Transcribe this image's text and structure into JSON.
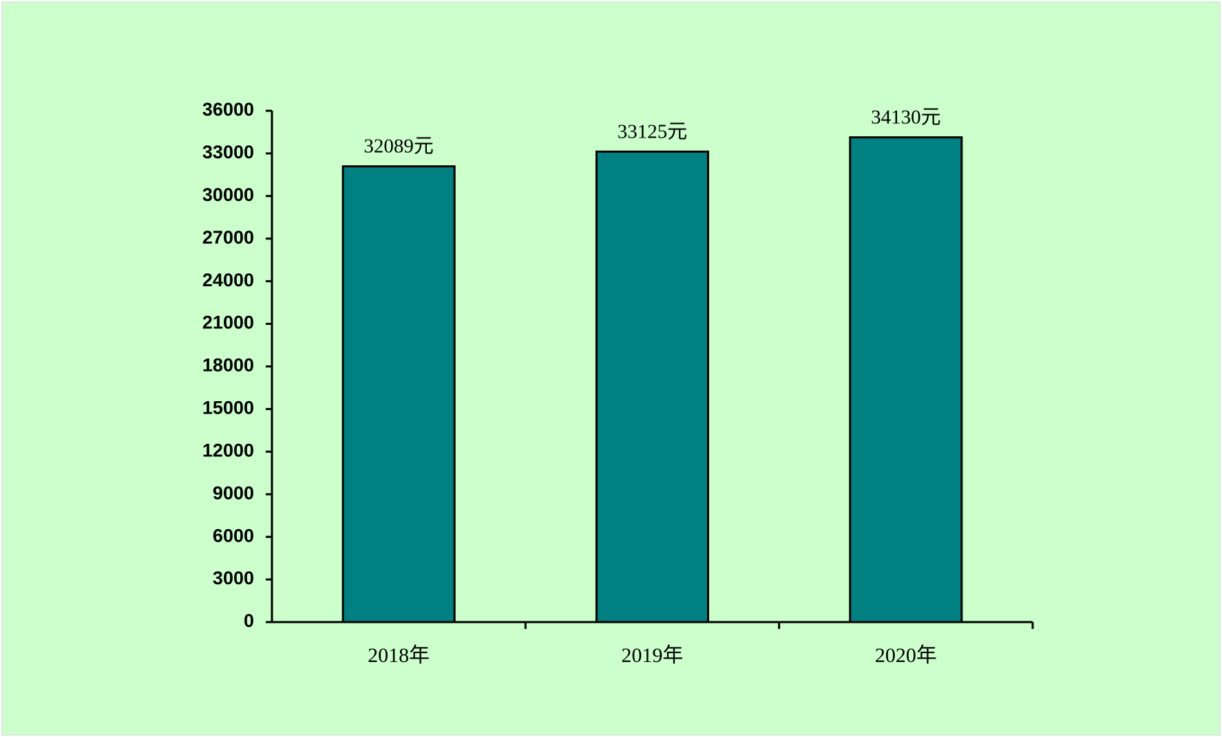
{
  "chart_data": {
    "type": "bar",
    "categories": [
      "2018年",
      "2019年",
      "2020年"
    ],
    "values": [
      32089,
      33125,
      34130
    ],
    "value_labels": [
      "32089元",
      "33125元",
      "34130元"
    ],
    "color": "#008080",
    "ylim": [
      0,
      36000
    ],
    "yticks": [
      0,
      3000,
      6000,
      9000,
      12000,
      15000,
      18000,
      21000,
      24000,
      27000,
      30000,
      33000,
      36000
    ],
    "grid": false
  }
}
